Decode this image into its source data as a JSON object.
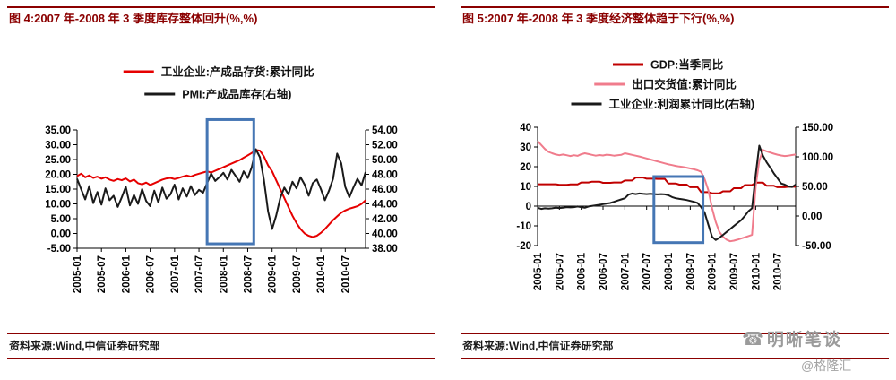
{
  "page": {
    "watermark_brand": "明晰笔谈",
    "watermark_handle": "@格隆汇",
    "phone_icon": "☎"
  },
  "chart_data": [
    {
      "type": "line",
      "title": "图 4:2007 年-2008 年 3 季度库存整体回升(%,%)",
      "source": "资料来源:Wind,中信证券研究部",
      "x_monthly_range": [
        "2005-01",
        "2010-12"
      ],
      "x_tick_labels": [
        "2005-01",
        "2005-07",
        "2006-01",
        "2006-07",
        "2007-01",
        "2007-07",
        "2008-01",
        "2008-07",
        "2009-01",
        "2009-07",
        "2010-01",
        "2010-07"
      ],
      "x_tick_month_indices": [
        0,
        6,
        12,
        18,
        24,
        30,
        36,
        42,
        48,
        54,
        60,
        66
      ],
      "left_axis": {
        "max": 35,
        "min": -5,
        "step": 5,
        "decimals": 2,
        "zero_line": false
      },
      "right_axis": {
        "max": 54,
        "min": 38,
        "step": 2,
        "decimals": 2
      },
      "grid": false,
      "legend_position": "top-center",
      "series": [
        {
          "name": "工业企业:产成品存货:累计同比",
          "axis": "left",
          "color": "#e60000",
          "values": [
            19.4,
            20.2,
            19.0,
            19.6,
            18.8,
            19.2,
            18.5,
            19.0,
            18.2,
            17.8,
            18.4,
            18.0,
            18.6,
            17.6,
            18.2,
            17.0,
            16.6,
            17.2,
            16.4,
            17.0,
            17.6,
            18.2,
            18.6,
            18.8,
            18.4,
            18.8,
            19.2,
            19.6,
            19.2,
            19.8,
            20.2,
            20.6,
            21.0,
            20.6,
            21.2,
            21.8,
            22.4,
            23.0,
            23.6,
            24.2,
            24.8,
            25.6,
            26.4,
            27.2,
            28.2,
            28.0,
            26.0,
            23.0,
            21.0,
            18.0,
            15.0,
            12.0,
            9.0,
            6.0,
            3.5,
            1.5,
            0.0,
            -0.8,
            -1.2,
            -0.8,
            0.2,
            1.5,
            3.0,
            4.5,
            5.8,
            7.0,
            7.8,
            8.4,
            8.8,
            9.2,
            10.0,
            11.2
          ]
        },
        {
          "name": "PMI:产成品库存(右轴)",
          "axis": "right",
          "color": "#1a1a1a",
          "values": [
            47.4,
            46.0,
            44.6,
            46.4,
            44.1,
            45.6,
            43.9,
            46.1,
            44.5,
            45.1,
            43.6,
            44.9,
            46.3,
            43.8,
            45.2,
            44.0,
            46.0,
            44.4,
            43.7,
            45.8,
            44.2,
            46.2,
            44.7,
            45.3,
            46.6,
            44.6,
            46.1,
            45.0,
            46.4,
            45.2,
            45.9,
            45.5,
            46.8,
            48.1,
            47.1,
            47.6,
            48.2,
            47.3,
            48.6,
            47.8,
            47.0,
            48.4,
            47.5,
            49.0,
            51.4,
            50.3,
            47.2,
            43.0,
            40.6,
            42.4,
            44.8,
            46.2,
            45.3,
            47.0,
            46.1,
            47.6,
            46.6,
            45.1,
            46.8,
            47.3,
            46.0,
            44.5,
            45.8,
            47.4,
            50.8,
            49.5,
            46.3,
            44.9,
            46.2,
            47.4,
            46.5,
            48.3
          ]
        }
      ],
      "highlight_box": {
        "x_from_month": 32,
        "x_to_month": 43.5,
        "top_value": 38.5,
        "bottom_value": -3.5,
        "value_axis": "left",
        "color": "#4576b4"
      }
    },
    {
      "type": "line",
      "title": "图 5:2007 年-2008 年 3 季度经济整体趋于下行(%,%)",
      "source": "资料来源:Wind,中信证券研究部",
      "x_monthly_range": [
        "2005-01",
        "2010-12"
      ],
      "x_tick_labels": [
        "2005-01",
        "2005-07",
        "2006-01",
        "2006-07",
        "2007-01",
        "2007-07",
        "2008-01",
        "2008-07",
        "2009-01",
        "2009-07",
        "2010-01",
        "2010-07"
      ],
      "x_tick_month_indices": [
        0,
        6,
        12,
        18,
        24,
        30,
        36,
        42,
        48,
        54,
        60,
        66
      ],
      "left_axis": {
        "max": 40,
        "min": -20,
        "step": 10,
        "decimals": 0,
        "zero_line": true
      },
      "right_axis": {
        "max": 150,
        "min": -50,
        "step": 50,
        "decimals": 2
      },
      "grid": false,
      "legend_position": "top-center",
      "series": [
        {
          "name": "GDP:当季同比",
          "axis": "left",
          "color": "#c00000",
          "values": [
            11.1,
            11.1,
            11.1,
            11.1,
            11.1,
            11.1,
            10.8,
            10.8,
            10.8,
            11.0,
            11.0,
            11.0,
            12.0,
            12.0,
            12.0,
            12.4,
            12.4,
            12.4,
            11.8,
            11.8,
            11.8,
            12.0,
            12.0,
            12.0,
            13.0,
            13.0,
            13.0,
            14.5,
            14.5,
            14.5,
            13.9,
            13.9,
            13.9,
            13.8,
            13.8,
            13.8,
            11.5,
            11.5,
            11.5,
            10.9,
            10.9,
            10.9,
            9.6,
            9.6,
            9.6,
            7.1,
            7.1,
            7.1,
            6.5,
            6.5,
            6.5,
            7.5,
            7.5,
            7.5,
            9.1,
            9.1,
            9.1,
            10.7,
            10.7,
            10.7,
            11.9,
            11.9,
            11.9,
            10.3,
            10.3,
            10.3,
            9.6,
            9.6,
            9.6,
            9.8,
            9.8,
            9.8
          ]
        },
        {
          "name": "出口交货值:累计同比",
          "axis": "left",
          "color": "#f07c8c",
          "values": [
            33.0,
            31.0,
            29.0,
            27.5,
            26.8,
            26.2,
            25.8,
            26.2,
            25.8,
            25.4,
            25.8,
            25.5,
            26.3,
            26.8,
            26.4,
            26.0,
            25.6,
            25.9,
            25.7,
            26.1,
            25.9,
            25.6,
            25.8,
            26.0,
            26.8,
            26.4,
            26.0,
            25.6,
            25.2,
            24.7,
            24.2,
            23.7,
            23.2,
            22.7,
            22.2,
            21.7,
            21.2,
            20.8,
            20.4,
            20.1,
            19.8,
            19.5,
            19.1,
            18.7,
            18.2,
            17.4,
            13.5,
            8.0,
            -1.0,
            -8.0,
            -13.0,
            -15.5,
            -17.0,
            -17.8,
            -17.5,
            -17.0,
            -16.4,
            -15.8,
            -15.2,
            -14.6,
            10.0,
            23.0,
            28.5,
            27.8,
            27.2,
            26.6,
            26.1,
            25.7,
            25.4,
            25.6,
            25.9,
            26.2
          ]
        },
        {
          "name": "工业企业:利润累计同比(右轴)",
          "axis": "right",
          "color": "#1a1a1a",
          "values": [
            14,
            12,
            13,
            12.5,
            13,
            14,
            13.5,
            14,
            15,
            14.5,
            15,
            16,
            15,
            14,
            16,
            17,
            18,
            19,
            20,
            21,
            22,
            24,
            26,
            28,
            30,
            36,
            38,
            37,
            38,
            37.5,
            37,
            37.5,
            37,
            36.5,
            37,
            36.5,
            35,
            32,
            30,
            29,
            28,
            27,
            25.5,
            24,
            22,
            15,
            5,
            -15,
            -35,
            -40.5,
            -37,
            -32,
            -27,
            -22,
            -17,
            -12,
            -7,
            0,
            8,
            13,
            70,
            119,
            102,
            91,
            82,
            72,
            64,
            55,
            53,
            50,
            49,
            53
          ]
        }
      ],
      "highlight_box": {
        "x_from_month": 32,
        "x_to_month": 45.5,
        "top_value": 15,
        "bottom_value": -18.5,
        "value_axis": "left",
        "color": "#4576b4"
      }
    }
  ]
}
